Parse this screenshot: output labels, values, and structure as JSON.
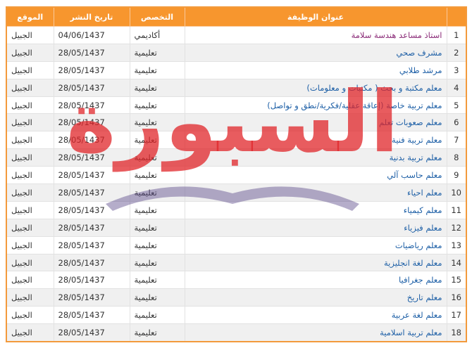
{
  "watermark": {
    "logo": "السبورة"
  },
  "table": {
    "header": [
      "عنوان الوظيفة",
      "التخصص",
      "تاريخ النشر",
      "الموقع"
    ],
    "rows": [
      [
        "1",
        "استاذ مساعد هندسة سلامة",
        "أكاديمي",
        "04/06/1437",
        "الجبيل"
      ],
      [
        "2",
        "مشرف صحي",
        "تعليمية",
        "28/05/1437",
        "الجبيل"
      ],
      [
        "3",
        "مرشد طلابي",
        "تعليمية",
        "28/05/1437",
        "الجبيل"
      ],
      [
        "4",
        "معلم مكتبة و بحث ( مكتبات و معلومات)",
        "تعليمية",
        "28/05/1437",
        "الجبيل"
      ],
      [
        "5",
        "معلم تربية خاصة (إعاقة عقلية/فكرية/نطق و تواصل)",
        "تعليمية",
        "28/05/1437",
        "الجبيل"
      ],
      [
        "6",
        "معلم صعوبات تعلم",
        "تعليمية",
        "28/05/1437",
        "الجبيل"
      ],
      [
        "7",
        "معلم تربية فنية",
        "تعليمية",
        "28/05/1437",
        "الجبيل"
      ],
      [
        "8",
        "معلم تربية بدنية",
        "تعليمية",
        "28/05/1437",
        "الجبيل"
      ],
      [
        "9",
        "معلم حاسب آلي",
        "تعليمية",
        "28/05/1437",
        "الجبيل"
      ],
      [
        "10",
        "معلم احياء",
        "تعليمية",
        "28/05/1437",
        "الجبيل"
      ],
      [
        "11",
        "معلم كيمياء",
        "تعليمية",
        "28/05/1437",
        "الجبيل"
      ],
      [
        "12",
        "معلم فيزياء",
        "تعليمية",
        "28/05/1437",
        "الجبيل"
      ],
      [
        "13",
        "معلم رياضيات",
        "تعليمية",
        "28/05/1437",
        "الجبيل"
      ],
      [
        "14",
        "معلم لغة انجليزية",
        "تعليمية",
        "28/05/1437",
        "الجبيل"
      ],
      [
        "15",
        "معلم جغرافيا",
        "تعليمية",
        "28/05/1437",
        "الجبيل"
      ],
      [
        "16",
        "معلم تاريخ",
        "تعليمية",
        "28/05/1437",
        "الجبيل"
      ],
      [
        "17",
        "معلم لغة عربية",
        "تعليمية",
        "28/05/1437",
        "الجبيل"
      ],
      [
        "18",
        "معلم تربية اسلامية",
        "تعليمية",
        "28/05/1437",
        "الجبيل"
      ]
    ]
  }
}
